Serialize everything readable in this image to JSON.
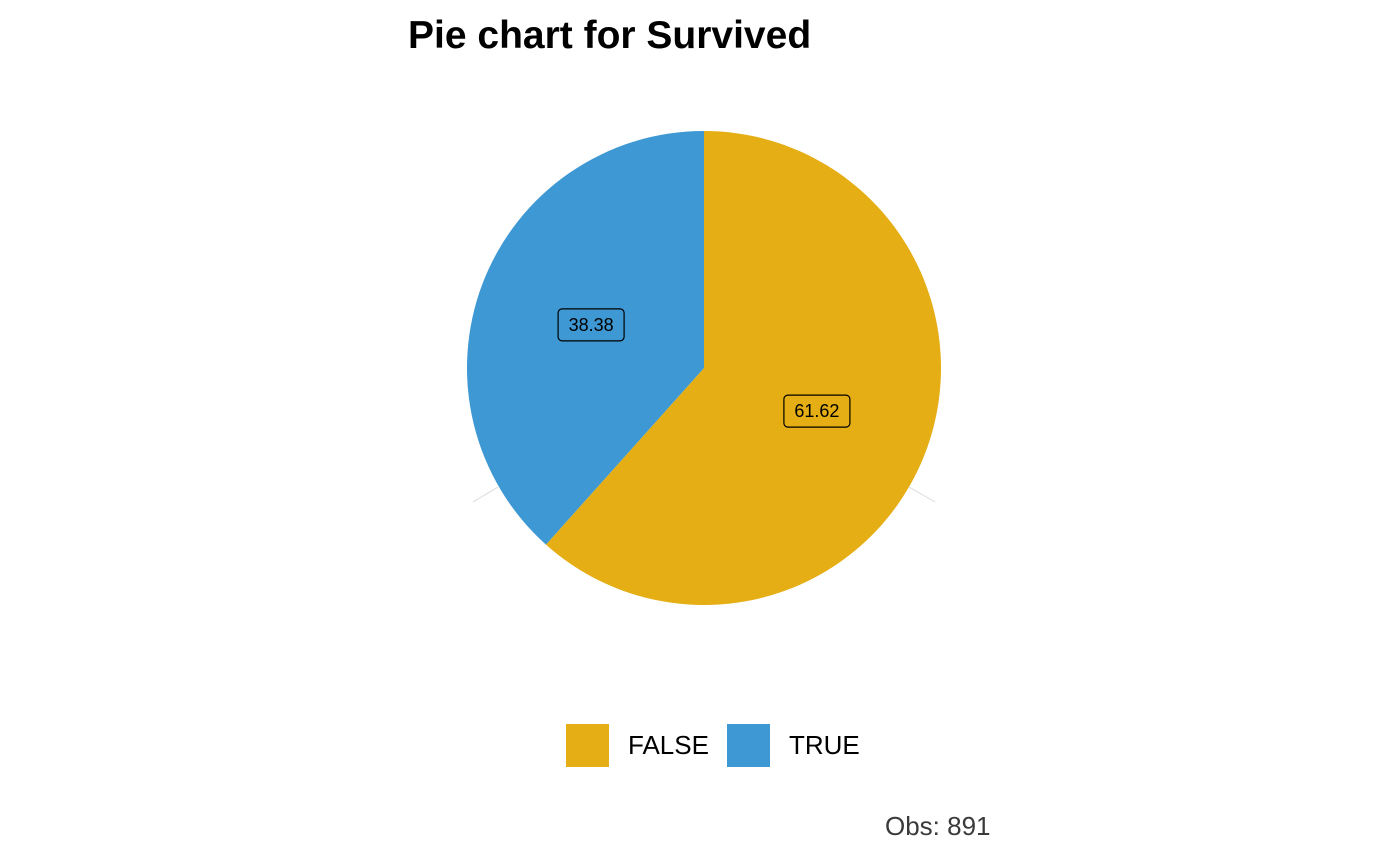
{
  "chart_data": {
    "type": "pie",
    "title": "Pie chart for Survived",
    "categories": [
      "FALSE",
      "TRUE"
    ],
    "values": [
      61.62,
      38.38
    ],
    "labels": [
      "61.62",
      "38.38"
    ],
    "colors": [
      "#E4AE14",
      "#3E98D3"
    ],
    "legend": [
      "FALSE",
      "TRUE"
    ],
    "legend_position": "bottom",
    "caption": "Obs: 891"
  }
}
